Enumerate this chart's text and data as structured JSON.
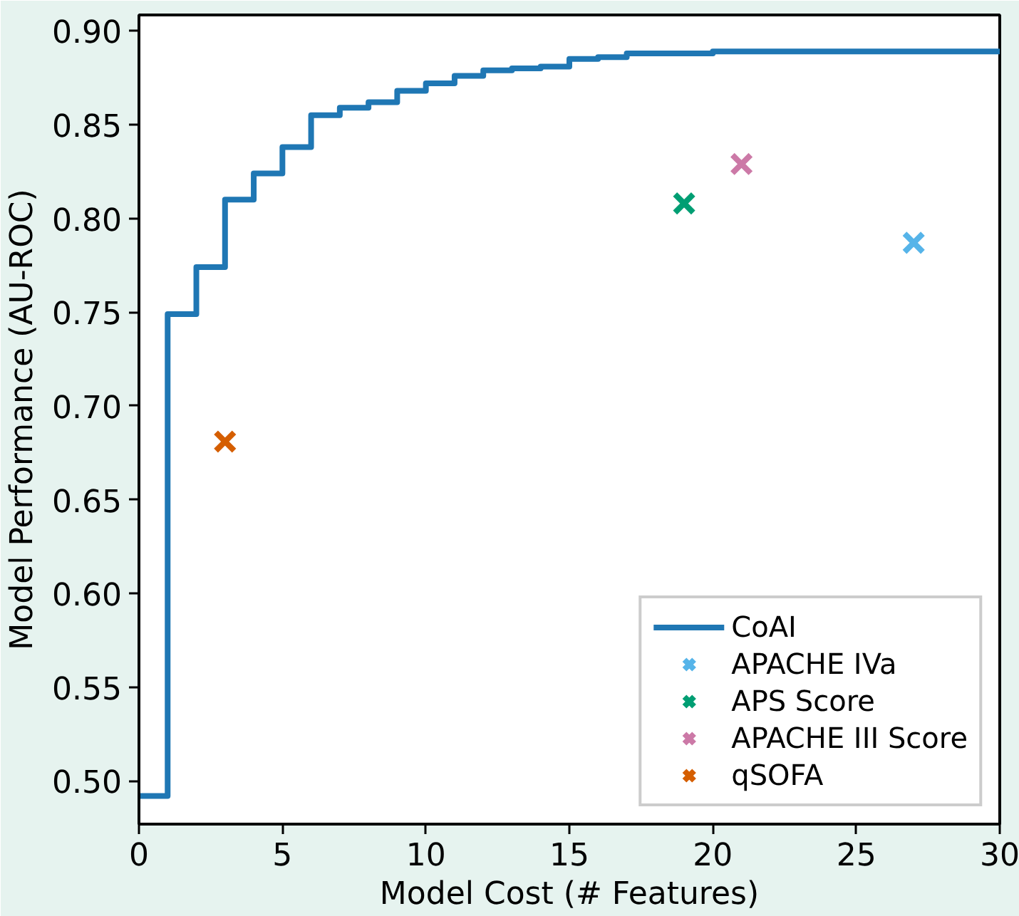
{
  "chart_data": {
    "type": "scatter",
    "xlabel": "Model Cost (# Features)",
    "ylabel": "Model Performance (AU-ROC)",
    "xlim": [
      0,
      30
    ],
    "ylim": [
      0.477,
      0.9085
    ],
    "xticks": [
      0,
      5,
      10,
      15,
      20,
      25,
      30
    ],
    "yticks": [
      {
        "value": 0.5,
        "label": "0.50"
      },
      {
        "value": 0.55,
        "label": "0.55"
      },
      {
        "value": 0.6,
        "label": "0.60"
      },
      {
        "value": 0.65,
        "label": "0.65"
      },
      {
        "value": 0.7,
        "label": "0.70"
      },
      {
        "value": 0.75,
        "label": "0.75"
      },
      {
        "value": 0.8,
        "label": "0.80"
      },
      {
        "value": 0.85,
        "label": "0.85"
      },
      {
        "value": 0.9,
        "label": "0.90"
      }
    ],
    "grid": false,
    "legend": "bottom right",
    "series": [
      {
        "name": "CoAI",
        "type": "step",
        "color": "#1f77b4",
        "x": [
          0,
          1,
          2,
          3,
          4,
          5,
          6,
          7,
          8,
          9,
          10,
          11,
          12,
          13,
          14,
          15,
          16,
          17,
          20,
          30
        ],
        "values": [
          0.492,
          0.749,
          0.774,
          0.81,
          0.824,
          0.838,
          0.855,
          0.859,
          0.862,
          0.868,
          0.872,
          0.876,
          0.879,
          0.88,
          0.881,
          0.885,
          0.886,
          0.888,
          0.889,
          0.889
        ]
      },
      {
        "name": "APACHE IVa",
        "color": "#56b4e9",
        "marker": "cross",
        "x": [
          27
        ],
        "values": [
          0.787
        ]
      },
      {
        "name": "APS Score",
        "color": "#009e73",
        "marker": "cross",
        "x": [
          19
        ],
        "values": [
          0.808
        ]
      },
      {
        "name": "APACHE III Score",
        "color": "#cc79a7",
        "marker": "cross",
        "x": [
          21
        ],
        "values": [
          0.829
        ]
      },
      {
        "name": "qSOFA",
        "color": "#d55e00",
        "marker": "cross",
        "x": [
          3
        ],
        "values": [
          0.681
        ]
      }
    ]
  }
}
